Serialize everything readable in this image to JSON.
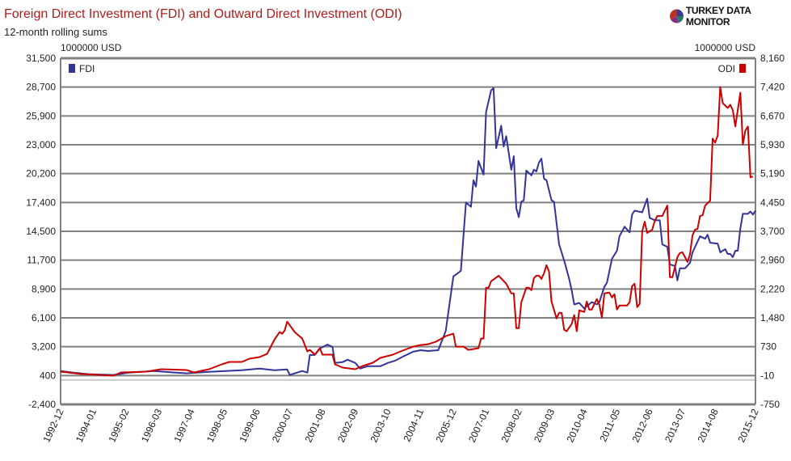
{
  "header": {
    "title": "Foreign Direct Investment (FDI) and Outward Direct Investment (ODI)",
    "subtitle": "12-month rolling sums",
    "logo_text": "TURKEY DATA MONITOR"
  },
  "chart_data": {
    "type": "line",
    "title": "Foreign Direct Investment (FDI) and Outward Direct Investment (ODI)",
    "subtitle": "12-month rolling sums",
    "x_start": "1992-12",
    "x_unit": "months since start",
    "x_tick_labels": [
      "1992-12",
      "1994-01",
      "1995-02",
      "1996-03",
      "1997-04",
      "1998-05",
      "1999-06",
      "2000-07",
      "2001-08",
      "2002-09",
      "2003-10",
      "2004-11",
      "2005-12",
      "2007-01",
      "2008-02",
      "2009-03",
      "2010-04",
      "2011-05",
      "2012-06",
      "2013-07",
      "2014-08",
      "2015-12"
    ],
    "x_tick_months": [
      0,
      13,
      26,
      39,
      52,
      65,
      78,
      91,
      104,
      117,
      130,
      143,
      156,
      169,
      182,
      195,
      208,
      221,
      234,
      247,
      260,
      276
    ],
    "x_range": [
      0,
      276
    ],
    "left_axis": {
      "unit": "1000000 USD",
      "range": [
        -2400,
        31500
      ],
      "ticks": [
        "31,500",
        "28,700",
        "25,900",
        "23,000",
        "20,200",
        "17,400",
        "14,500",
        "11,700",
        "8,900",
        "6,100",
        "3,200",
        "400",
        "-2,400"
      ]
    },
    "right_axis": {
      "unit": "1000000 USD",
      "range": [
        -750,
        8160
      ],
      "ticks": [
        "8,160",
        "7,420",
        "6,670",
        "5,930",
        "5,190",
        "4,450",
        "3,700",
        "2,960",
        "2,220",
        "1,480",
        "730",
        "-10",
        "-750"
      ]
    },
    "grid": true,
    "legend": [
      {
        "name": "FDI",
        "placement": "top-left"
      },
      {
        "name": "ODI",
        "placement": "top-right"
      }
    ],
    "series": [
      {
        "name": "FDI",
        "axis": "left",
        "color": "#333399",
        "points": [
          [
            0,
            870
          ],
          [
            5,
            710
          ],
          [
            11,
            560
          ],
          [
            21,
            480
          ],
          [
            27,
            710
          ],
          [
            37,
            870
          ],
          [
            50,
            640
          ],
          [
            59,
            790
          ],
          [
            72,
            950
          ],
          [
            79,
            1110
          ],
          [
            85,
            950
          ],
          [
            90,
            1030
          ],
          [
            91,
            480
          ],
          [
            96,
            870
          ],
          [
            98,
            710
          ],
          [
            99,
            2440
          ],
          [
            101,
            2440
          ],
          [
            103,
            3070
          ],
          [
            106,
            3460
          ],
          [
            108,
            3230
          ],
          [
            109,
            1660
          ],
          [
            112,
            1740
          ],
          [
            114,
            1970
          ],
          [
            117,
            1660
          ],
          [
            119,
            1110
          ],
          [
            122,
            1340
          ],
          [
            127,
            1340
          ],
          [
            130,
            1660
          ],
          [
            133,
            1890
          ],
          [
            136,
            2280
          ],
          [
            140,
            2760
          ],
          [
            143,
            2910
          ],
          [
            146,
            2830
          ],
          [
            150,
            2910
          ],
          [
            153,
            4800
          ],
          [
            156,
            10130
          ],
          [
            159,
            10680
          ],
          [
            161,
            17360
          ],
          [
            163,
            16960
          ],
          [
            164,
            19550
          ],
          [
            165,
            18930
          ],
          [
            166,
            21440
          ],
          [
            168,
            20100
          ],
          [
            169,
            26230
          ],
          [
            171,
            28350
          ],
          [
            172,
            28580
          ],
          [
            173,
            22690
          ],
          [
            175,
            24890
          ],
          [
            176,
            22850
          ],
          [
            177,
            23870
          ],
          [
            179,
            20580
          ],
          [
            180,
            21910
          ],
          [
            181,
            16810
          ],
          [
            182,
            15940
          ],
          [
            183,
            17440
          ],
          [
            184,
            17590
          ],
          [
            185,
            20500
          ],
          [
            187,
            20030
          ],
          [
            188,
            20580
          ],
          [
            189,
            20420
          ],
          [
            190,
            21280
          ],
          [
            191,
            21670
          ],
          [
            192,
            19710
          ],
          [
            193,
            19550
          ],
          [
            195,
            17590
          ],
          [
            196,
            17440
          ],
          [
            198,
            13270
          ],
          [
            200,
            11700
          ],
          [
            202,
            9900
          ],
          [
            203,
            8800
          ],
          [
            204,
            7390
          ],
          [
            206,
            7540
          ],
          [
            208,
            6990
          ],
          [
            211,
            7620
          ],
          [
            213,
            7390
          ],
          [
            214,
            7620
          ],
          [
            216,
            9110
          ],
          [
            217,
            9510
          ],
          [
            219,
            11860
          ],
          [
            221,
            12650
          ],
          [
            222,
            14060
          ],
          [
            224,
            15000
          ],
          [
            226,
            14450
          ],
          [
            227,
            16180
          ],
          [
            228,
            16570
          ],
          [
            231,
            16410
          ],
          [
            233,
            17750
          ],
          [
            234,
            15870
          ],
          [
            236,
            15630
          ],
          [
            238,
            15630
          ],
          [
            239,
            13270
          ],
          [
            241,
            13040
          ],
          [
            242,
            11310
          ],
          [
            244,
            11160
          ],
          [
            245,
            9740
          ],
          [
            246,
            10920
          ],
          [
            248,
            10920
          ],
          [
            250,
            11470
          ],
          [
            251,
            12490
          ],
          [
            254,
            14060
          ],
          [
            256,
            13820
          ],
          [
            257,
            14220
          ],
          [
            258,
            13430
          ],
          [
            261,
            13350
          ],
          [
            262,
            12490
          ],
          [
            264,
            12800
          ],
          [
            265,
            12330
          ],
          [
            266,
            12330
          ],
          [
            267,
            12020
          ],
          [
            268,
            12650
          ],
          [
            269,
            12650
          ],
          [
            270,
            14840
          ],
          [
            271,
            16260
          ],
          [
            273,
            16260
          ],
          [
            274,
            16490
          ],
          [
            275,
            16180
          ],
          [
            276,
            16570
          ]
        ]
      },
      {
        "name": "ODI",
        "axis": "right",
        "color": "#cc0000",
        "points": [
          [
            0,
            94
          ],
          [
            8,
            32
          ],
          [
            14,
            11
          ],
          [
            21,
            -10
          ],
          [
            24,
            73
          ],
          [
            34,
            94
          ],
          [
            40,
            156
          ],
          [
            50,
            135
          ],
          [
            53,
            73
          ],
          [
            59,
            156
          ],
          [
            64,
            281
          ],
          [
            67,
            343
          ],
          [
            72,
            343
          ],
          [
            75,
            426
          ],
          [
            79,
            467
          ],
          [
            82,
            550
          ],
          [
            85,
            924
          ],
          [
            87,
            1111
          ],
          [
            88,
            1069
          ],
          [
            89,
            1152
          ],
          [
            90,
            1380
          ],
          [
            93,
            1111
          ],
          [
            96,
            944
          ],
          [
            98,
            613
          ],
          [
            99,
            654
          ],
          [
            101,
            530
          ],
          [
            103,
            696
          ],
          [
            104,
            530
          ],
          [
            108,
            530
          ],
          [
            109,
            281
          ],
          [
            112,
            198
          ],
          [
            117,
            156
          ],
          [
            120,
            239
          ],
          [
            124,
            322
          ],
          [
            127,
            447
          ],
          [
            132,
            530
          ],
          [
            135,
            613
          ],
          [
            140,
            737
          ],
          [
            143,
            779
          ],
          [
            146,
            799
          ],
          [
            149,
            862
          ],
          [
            153,
            1007
          ],
          [
            156,
            1069
          ],
          [
            157,
            737
          ],
          [
            160,
            737
          ],
          [
            162,
            654
          ],
          [
            166,
            696
          ],
          [
            167,
            945
          ],
          [
            168,
            945
          ],
          [
            169,
            2252
          ],
          [
            170,
            2252
          ],
          [
            171,
            2418
          ],
          [
            174,
            2563
          ],
          [
            177,
            2356
          ],
          [
            179,
            2107
          ],
          [
            180,
            2107
          ],
          [
            181,
            1214
          ],
          [
            182,
            1214
          ],
          [
            183,
            1878
          ],
          [
            185,
            2252
          ],
          [
            186,
            2252
          ],
          [
            187,
            2190
          ],
          [
            188,
            2501
          ],
          [
            189,
            2563
          ],
          [
            190,
            2563
          ],
          [
            191,
            2480
          ],
          [
            192,
            2625
          ],
          [
            193,
            2833
          ],
          [
            194,
            2667
          ],
          [
            195,
            1899
          ],
          [
            197,
            1463
          ],
          [
            198,
            1609
          ],
          [
            199,
            1609
          ],
          [
            200,
            1173
          ],
          [
            201,
            1131
          ],
          [
            203,
            1318
          ],
          [
            204,
            1546
          ],
          [
            205,
            1131
          ],
          [
            206,
            1671
          ],
          [
            208,
            1629
          ],
          [
            209,
            1899
          ],
          [
            210,
            1692
          ],
          [
            211,
            1692
          ],
          [
            212,
            1837
          ],
          [
            213,
            1961
          ],
          [
            214,
            1816
          ],
          [
            215,
            1484
          ],
          [
            216,
            2107
          ],
          [
            218,
            2127
          ],
          [
            219,
            2003
          ],
          [
            220,
            2086
          ],
          [
            221,
            1692
          ],
          [
            222,
            1795
          ],
          [
            225,
            1795
          ],
          [
            226,
            1878
          ],
          [
            227,
            2293
          ],
          [
            228,
            2356
          ],
          [
            229,
            1754
          ],
          [
            230,
            1837
          ],
          [
            231,
            3704
          ],
          [
            232,
            3953
          ],
          [
            233,
            3663
          ],
          [
            235,
            3746
          ],
          [
            236,
            3974
          ],
          [
            237,
            4099
          ],
          [
            239,
            4099
          ],
          [
            241,
            4368
          ],
          [
            242,
            2522
          ],
          [
            243,
            2522
          ],
          [
            245,
            3040
          ],
          [
            246,
            3144
          ],
          [
            247,
            3165
          ],
          [
            249,
            2916
          ],
          [
            250,
            3123
          ],
          [
            251,
            3600
          ],
          [
            252,
            3746
          ],
          [
            253,
            3767
          ],
          [
            254,
            4099
          ],
          [
            255,
            4119
          ],
          [
            256,
            4368
          ],
          [
            258,
            4493
          ],
          [
            259,
            6091
          ],
          [
            260,
            5987
          ],
          [
            261,
            6174
          ],
          [
            262,
            7418
          ],
          [
            263,
            7004
          ],
          [
            265,
            6879
          ],
          [
            266,
            6962
          ],
          [
            267,
            6817
          ],
          [
            268,
            6402
          ],
          [
            270,
            7273
          ],
          [
            271,
            5945
          ],
          [
            272,
            6298
          ],
          [
            273,
            6402
          ],
          [
            274,
            5095
          ],
          [
            275,
            5115
          ]
        ]
      }
    ]
  }
}
